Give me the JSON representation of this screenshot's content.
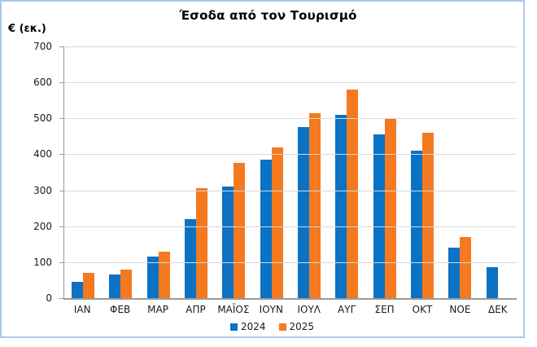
{
  "frame": {
    "border_color": "#a9c8e9",
    "background": "#ffffff"
  },
  "header": {
    "title": "Έσοδα από τον Τουρισμό",
    "unit_label": "€ (εκ.)"
  },
  "chart_data": {
    "type": "bar",
    "title": "Έσοδα από τον Τουρισμό",
    "xlabel": "",
    "ylabel": "€ (εκ.)",
    "categories": [
      "ΙΑΝ",
      "ΦΕΒ",
      "ΜΑΡ",
      "ΑΠΡ",
      "ΜΑΪΟΣ",
      "ΙΟΥΝ",
      "ΙΟΥΛ",
      "ΑΥΓ",
      "ΣΕΠ",
      "ΟΚΤ",
      "ΝΟΕ",
      "ΔΕΚ"
    ],
    "series": [
      {
        "name": "2024",
        "color": "#0b72c4",
        "values": [
          45,
          65,
          115,
          220,
          310,
          385,
          475,
          510,
          455,
          410,
          140,
          85
        ]
      },
      {
        "name": "2025",
        "color": "#f4791f",
        "values": [
          70,
          80,
          130,
          305,
          375,
          420,
          515,
          580,
          500,
          460,
          170,
          null
        ]
      }
    ],
    "ylim": [
      0,
      700
    ],
    "yticks": [
      0,
      100,
      200,
      300,
      400,
      500,
      600,
      700
    ],
    "grid": true,
    "legend_position": "bottom",
    "grid_color": "#d9d9d9",
    "axis_color": "#9a9a9a",
    "text_color": "#1a1a1a"
  }
}
